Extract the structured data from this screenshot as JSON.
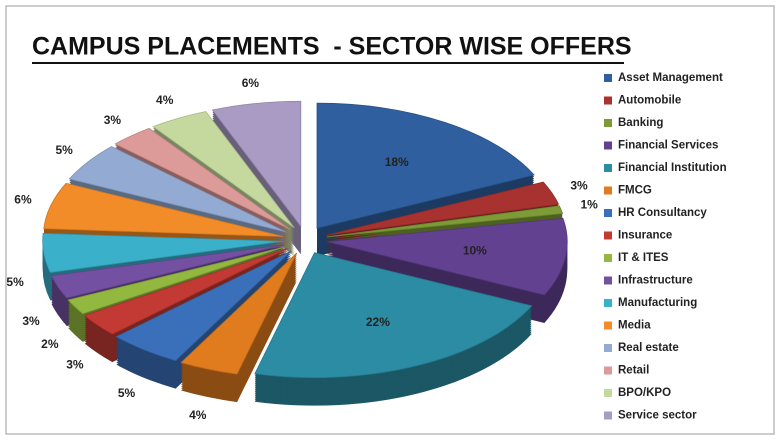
{
  "chart_data": {
    "type": "pie",
    "title": "CAMPUS PLACEMENTS  - SECTOR WISE OFFERS",
    "categories": [
      "Asset Management",
      "Automobile",
      "Banking",
      "Financial Services",
      "Financial Institution",
      "FMCG",
      "HR Consultancy",
      "Insurance",
      "IT & ITES",
      "Infrastructure",
      "Manufacturing",
      "Media",
      "Real estate",
      "Retail",
      "BPO/KPO",
      "Service sector"
    ],
    "values": [
      18,
      3,
      1,
      10,
      22,
      4,
      5,
      3,
      2,
      3,
      5,
      6,
      5,
      3,
      4,
      6
    ],
    "value_labels": [
      "18%",
      "3%",
      "1%",
      "10%",
      "22%",
      "4%",
      "5%",
      "3%",
      "2%",
      "3%",
      "5%",
      "6%",
      "5%",
      "3%",
      "4%",
      "6%"
    ],
    "colors": [
      "#2f5f9e",
      "#a8322f",
      "#7d9b36",
      "#624191",
      "#2b8ca3",
      "#e07b1e",
      "#3a70ba",
      "#c23a33",
      "#93b83f",
      "#7350a2",
      "#3bb0cb",
      "#f28c28",
      "#93abd3",
      "#dc9a98",
      "#c5d89e",
      "#a99bc4"
    ],
    "legend": "right"
  }
}
